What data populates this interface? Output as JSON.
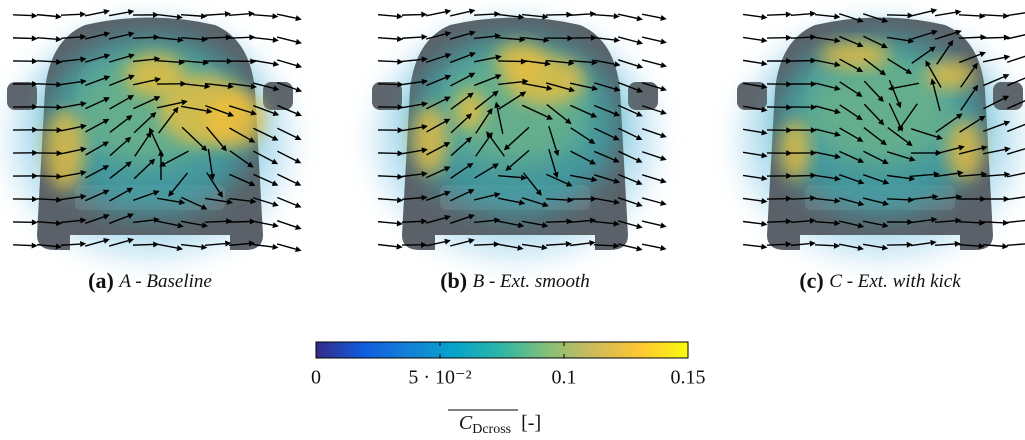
{
  "panels": [
    {
      "tag": "(a)",
      "caption": "A - Baseline"
    },
    {
      "tag": "(b)",
      "caption": "B - Ext. smooth"
    },
    {
      "tag": "(c)",
      "caption": "C - Ext. with kick"
    }
  ],
  "colorbar": {
    "lim": [
      0,
      0.15
    ],
    "ticks": [
      0,
      {
        "value": 0.05,
        "label": "5 · 10⁻²"
      },
      0.1,
      0.15
    ],
    "colors": [
      "#352a87",
      "#0f5cdd",
      "#1481d6",
      "#06a4ca",
      "#2eb7a4",
      "#87bf77",
      "#d1bb59",
      "#fec832",
      "#f9fb0e"
    ],
    "label": {
      "symbol": "C",
      "subscript": "Dcross",
      "unit": "[-]"
    }
  }
}
